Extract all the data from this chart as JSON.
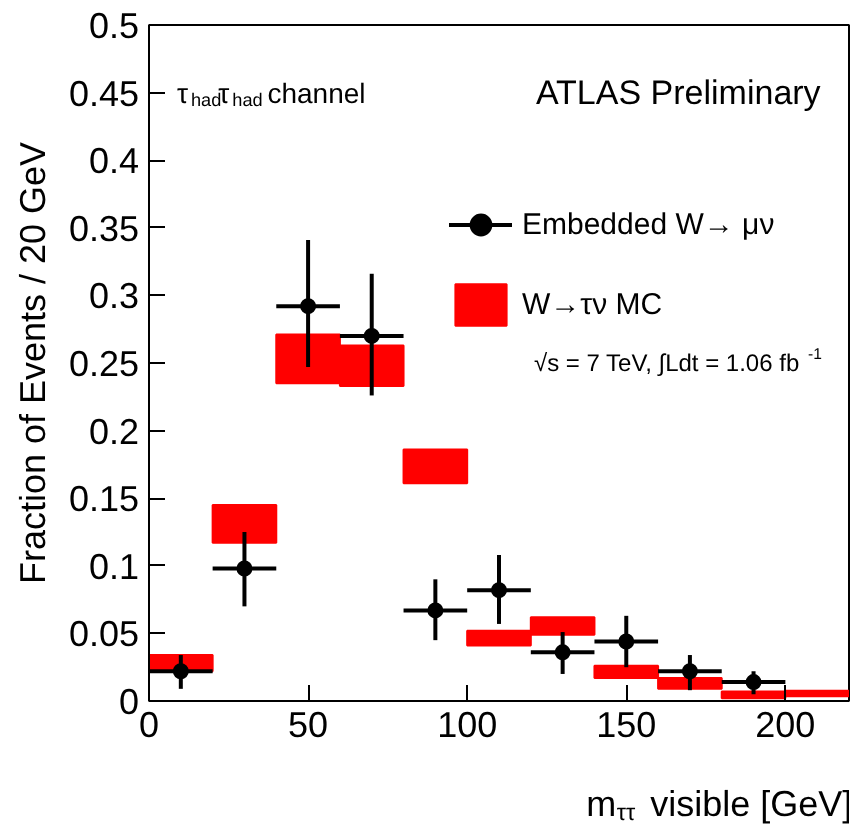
{
  "chart_data": {
    "type": "scatter",
    "xlabel": "m$_{ττ}$ visible [GeV]",
    "ylabel": "Fraction of Events / 20 GeV",
    "annotations": [
      "τ$_{had}$τ$_{had}$ channel",
      "ATLAS Preliminary",
      "√s = 7 TeV,  ∫Ldt = 1.06 fb$^{-1}$"
    ],
    "xlim": [
      0,
      220
    ],
    "ylim": [
      0,
      0.5
    ],
    "xticks": [
      0,
      50,
      100,
      150,
      200
    ],
    "yticks": [
      0,
      0.05,
      0.1,
      0.15,
      0.2,
      0.25,
      0.3,
      0.35,
      0.4,
      0.45,
      0.5
    ],
    "grid": false,
    "legend": "top right",
    "series": [
      {
        "name": "Embedded W→ μν",
        "color": "#000000",
        "marker": "circle",
        "x": [
          10,
          30,
          50,
          70,
          90,
          110,
          130,
          150,
          170,
          190
        ],
        "values": [
          0.022,
          0.098,
          0.292,
          0.27,
          0.067,
          0.082,
          0.036,
          0.044,
          0.022,
          0.014
        ],
        "errors": [
          [
            0.009,
            0.034
          ],
          [
            0.07,
            0.125
          ],
          [
            0.247,
            0.341
          ],
          [
            0.226,
            0.316
          ],
          [
            0.045,
            0.09
          ],
          [
            0.057,
            0.108
          ],
          [
            0.02,
            0.051
          ],
          [
            0.025,
            0.063
          ],
          [
            0.008,
            0.034
          ],
          [
            0.005,
            0.022
          ]
        ],
        "xerrors": [
          10,
          10,
          10,
          10,
          10,
          10,
          10,
          10,
          10,
          10
        ]
      },
      {
        "name": "W→τν MC",
        "type": "bar",
        "color": "#ff0000",
        "x": [
          10,
          30,
          50,
          70,
          90,
          110,
          130,
          150,
          170,
          190,
          210
        ],
        "base": [
          0.022,
          0.117,
          0.235,
          0.233,
          0.161,
          0.041,
          0.049,
          0.017,
          0.009,
          0.002,
          0.0035
        ],
        "values": [
          0.012,
          0.028,
          0.036,
          0.03,
          0.025,
          0.011,
          0.013,
          0.009,
          0.008,
          0.005,
          0.004
        ]
      }
    ]
  }
}
